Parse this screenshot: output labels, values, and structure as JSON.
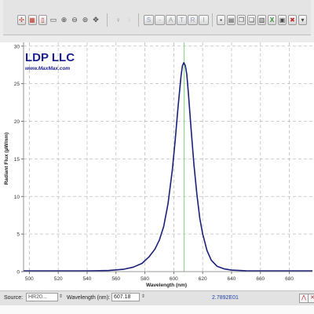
{
  "toolbar": {
    "tools": [
      {
        "name": "crosshair-icon",
        "glyph": "✣"
      },
      {
        "name": "grid-icon",
        "glyph": "▦"
      },
      {
        "name": "battery-icon",
        "glyph": "▯"
      },
      {
        "name": "zoom-box-icon",
        "glyph": "▭"
      },
      {
        "name": "zoom-in-icon",
        "glyph": "⊕"
      },
      {
        "name": "zoom-out-icon",
        "glyph": "⊖"
      },
      {
        "name": "zoom-fit-icon",
        "glyph": "⊚"
      },
      {
        "name": "pan-icon",
        "glyph": "✥"
      }
    ],
    "markers": [
      {
        "name": "marker-pin-icon",
        "glyph": "♀"
      },
      {
        "name": "marker-pin-dim-icon",
        "glyph": "♀"
      }
    ],
    "modes": [
      "S",
      "-",
      "A",
      "T",
      "R",
      "I"
    ],
    "file_tools": [
      {
        "name": "save-icon",
        "glyph": "▪"
      },
      {
        "name": "print-icon",
        "glyph": "▤"
      },
      {
        "name": "copy-icon",
        "glyph": "❐"
      },
      {
        "name": "paste-icon",
        "glyph": "❏"
      },
      {
        "name": "export-icon",
        "glyph": "▥"
      },
      {
        "name": "excel-icon",
        "glyph": "X"
      },
      {
        "name": "clipboard-icon",
        "glyph": "▣"
      },
      {
        "name": "delete-icon",
        "glyph": "✖"
      }
    ],
    "dropdown": {
      "glyph": "▾"
    }
  },
  "logo": {
    "title": "LDP LLC",
    "url": "www.MaxMax.com"
  },
  "chart_data": {
    "type": "line",
    "xlabel": "Wavelength (nm)",
    "ylabel": "Radiant Flux (µW/nm)",
    "xlim": [
      496,
      696
    ],
    "ylim": [
      0,
      30.5
    ],
    "xticks": [
      500,
      520,
      540,
      560,
      580,
      600,
      620,
      640,
      660,
      680
    ],
    "yticks": [
      0,
      5,
      10,
      15,
      20,
      25,
      30
    ],
    "grid": true,
    "cursor_x": 607.18,
    "colors": {
      "line": "#1a1f7a",
      "cursor": "#7fd67f",
      "grid": "#bdbdbd"
    },
    "series": [
      {
        "x": [
          496,
          540,
          555,
          565,
          572,
          578,
          583,
          587,
          590,
          593,
          596,
          599,
          601,
          603,
          605,
          606,
          607,
          608,
          609,
          610,
          612,
          614,
          616,
          618,
          620,
          623,
          626,
          630,
          635,
          640,
          650,
          660,
          696
        ],
        "y": [
          0.1,
          0.1,
          0.15,
          0.3,
          0.6,
          1.1,
          2.0,
          3.0,
          4.2,
          6.0,
          9.0,
          13.5,
          17.5,
          22.0,
          26.0,
          27.4,
          27.8,
          27.4,
          26.3,
          24.0,
          19.0,
          14.2,
          10.3,
          7.1,
          5.0,
          2.8,
          1.5,
          0.7,
          0.35,
          0.2,
          0.12,
          0.1,
          0.1
        ]
      }
    ]
  },
  "status": {
    "source_label": "Source:",
    "source_value": "HR20...",
    "wavelength_label": "Wavelength (nm):",
    "wavelength_value": "607.18",
    "reading": "2.7892E01",
    "right_icons": [
      {
        "name": "peak-icon",
        "glyph": "⋀"
      },
      {
        "name": "close-status-icon",
        "glyph": "✕"
      }
    ]
  }
}
